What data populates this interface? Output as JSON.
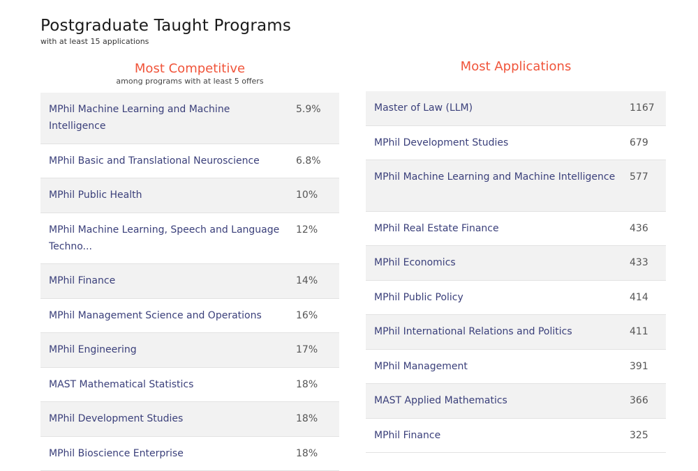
{
  "header": {
    "title": "Postgraduate Taught Programs",
    "subtitle": "with at least 15 applications"
  },
  "competitive": {
    "heading": "Most Competitive",
    "subheading": "among programs with at least 5 offers",
    "rows": [
      {
        "name": "MPhil Machine Learning and Machine Intelligence",
        "value": "5.9%"
      },
      {
        "name": "MPhil Basic and Translational Neuroscience",
        "value": "6.8%"
      },
      {
        "name": "MPhil Public Health",
        "value": "10%"
      },
      {
        "name": "MPhil Machine Learning, Speech and Language Techno...",
        "value": "12%"
      },
      {
        "name": "MPhil Finance",
        "value": "14%"
      },
      {
        "name": "MPhil Management Science and Operations",
        "value": "16%"
      },
      {
        "name": "MPhil Engineering",
        "value": "17%"
      },
      {
        "name": "MAST Mathematical Statistics",
        "value": "18%"
      },
      {
        "name": "MPhil Development Studies",
        "value": "18%"
      },
      {
        "name": "MPhil Bioscience Enterprise",
        "value": "18%"
      }
    ]
  },
  "applications": {
    "heading": "Most Applications",
    "rows": [
      {
        "name": "Master of Law (LLM)",
        "value": "1167"
      },
      {
        "name": "MPhil Development Studies",
        "value": "679"
      },
      {
        "name": "MPhil Machine Learning and Machine Intelligence",
        "value": "577"
      },
      {
        "name": "MPhil Real Estate Finance",
        "value": "436"
      },
      {
        "name": "MPhil Economics",
        "value": "433"
      },
      {
        "name": "MPhil Public Policy",
        "value": "414"
      },
      {
        "name": "MPhil International Relations and Politics",
        "value": "411"
      },
      {
        "name": "MPhil Management",
        "value": "391"
      },
      {
        "name": "MAST Applied Mathematics",
        "value": "366"
      },
      {
        "name": "MPhil Finance",
        "value": "325"
      }
    ]
  }
}
